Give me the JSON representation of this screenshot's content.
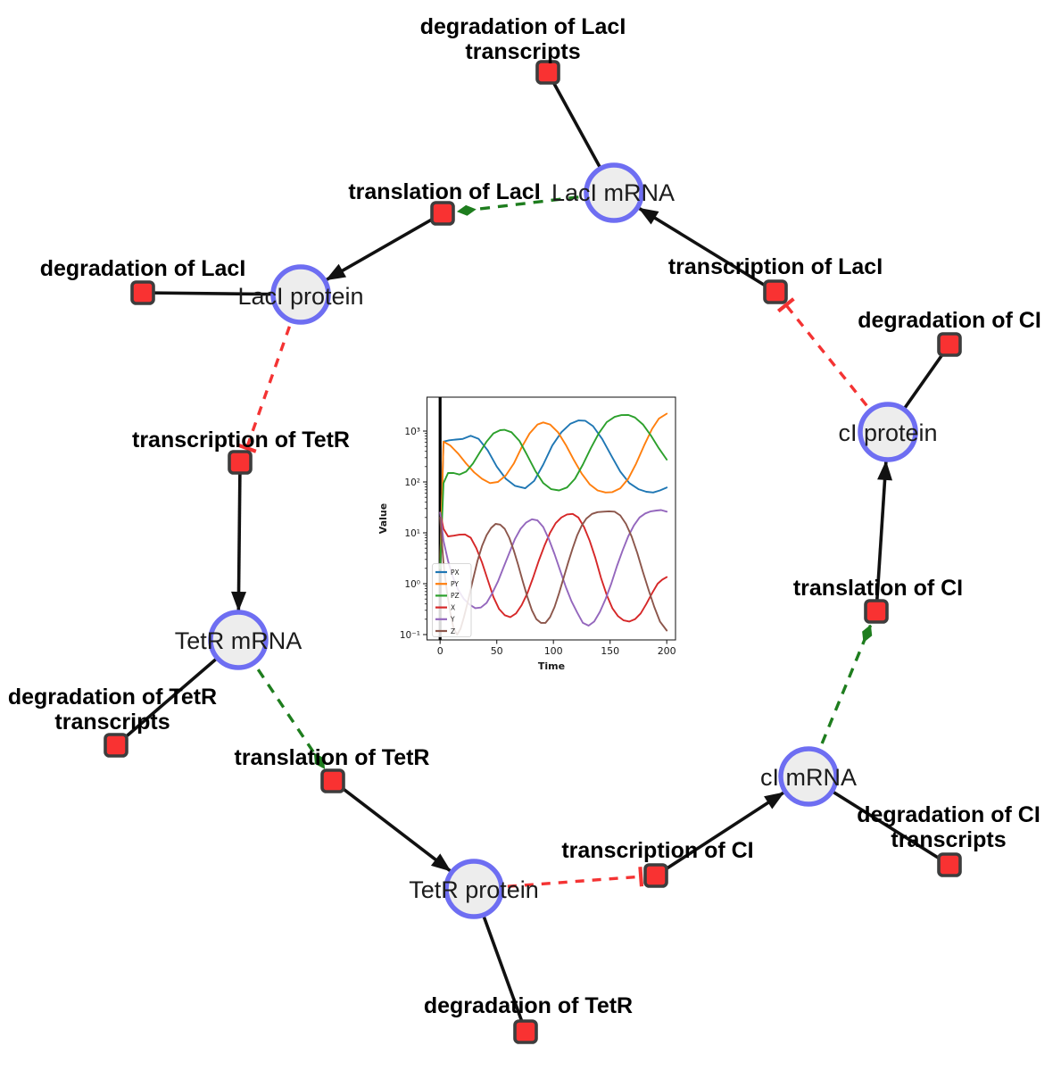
{
  "network": {
    "species_nodes": {
      "laci_mrna": {
        "label": "LacI mRNA"
      },
      "laci_protein": {
        "label": "LacI protein"
      },
      "tetr_mrna": {
        "label": "TetR mRNA"
      },
      "tetr_protein": {
        "label": "TetR protein"
      },
      "ci_mrna": {
        "label": "cI mRNA"
      },
      "ci_protein": {
        "label": "cI protein"
      }
    },
    "reaction_nodes": {
      "deg_laci_tx": {
        "line1": "degradation of LacI",
        "line2": "transcripts"
      },
      "trl_laci": {
        "line1": "translation of LacI"
      },
      "txn_laci": {
        "line1": "transcription of LacI"
      },
      "deg_ci": {
        "line1": "degradation of CI"
      },
      "deg_laci": {
        "line1": "degradation of LacI"
      },
      "txn_tetr": {
        "line1": "transcription of TetR"
      },
      "deg_tetr_tx": {
        "line1": "degradation of TetR",
        "line2": "transcripts"
      },
      "trl_tetr": {
        "line1": "translation of TetR"
      },
      "deg_tetr": {
        "line1": "degradation of TetR"
      },
      "txn_ci": {
        "line1": "transcription of CI"
      },
      "trl_ci": {
        "line1": "translation of CI"
      },
      "deg_ci_tx": {
        "line1": "degradation of CI",
        "line2": "transcripts"
      }
    },
    "colors": {
      "species_fill": "#ededed",
      "species_stroke": "#6e6ef2",
      "reaction_fill": "#f93232",
      "reaction_stroke": "#3d3d3d",
      "production_edge": "#111111",
      "consumption_edge": "#111111",
      "modifier_edge": "#1e7d1e",
      "inhibition_edge": "#f43333"
    }
  },
  "chart_data": {
    "type": "line",
    "title": "",
    "xlabel": "Time",
    "ylabel": "Value",
    "yscale": "log",
    "xlim": [
      -12,
      208
    ],
    "ylim": [
      0.08,
      4600
    ],
    "grid": false,
    "legend_position": "lower left",
    "annotation_vline_x": 0,
    "xticks": [
      0,
      50,
      100,
      150,
      200
    ],
    "xticklabels": [
      "0",
      "50",
      "100",
      "150",
      "200"
    ],
    "yticklabels": [
      "10⁻¹",
      "10⁰",
      "10¹",
      "10²",
      "10³"
    ],
    "series": [
      {
        "name": "PX",
        "color": "#1f77b4",
        "points": [
          [
            0,
            2
          ],
          [
            3,
            620
          ],
          [
            8,
            660
          ],
          [
            14,
            680
          ],
          [
            20,
            700
          ],
          [
            27,
            810
          ],
          [
            34,
            700
          ],
          [
            42,
            420
          ],
          [
            50,
            200
          ],
          [
            58,
            115
          ],
          [
            66,
            84
          ],
          [
            75,
            75
          ],
          [
            83,
            105
          ],
          [
            91,
            220
          ],
          [
            99,
            520
          ],
          [
            107,
            950
          ],
          [
            115,
            1400
          ],
          [
            122,
            1620
          ],
          [
            128,
            1600
          ],
          [
            135,
            1250
          ],
          [
            143,
            700
          ],
          [
            151,
            330
          ],
          [
            159,
            160
          ],
          [
            167,
            95
          ],
          [
            175,
            72
          ],
          [
            182,
            64
          ],
          [
            188,
            62
          ],
          [
            194,
            68
          ],
          [
            200,
            78
          ]
        ]
      },
      {
        "name": "PY",
        "color": "#ff7f0e",
        "points": [
          [
            0,
            2
          ],
          [
            3,
            620
          ],
          [
            9,
            520
          ],
          [
            16,
            360
          ],
          [
            23,
            230
          ],
          [
            30,
            155
          ],
          [
            37,
            115
          ],
          [
            44,
            95
          ],
          [
            51,
            100
          ],
          [
            58,
            135
          ],
          [
            65,
            230
          ],
          [
            72,
            480
          ],
          [
            79,
            900
          ],
          [
            86,
            1350
          ],
          [
            91,
            1480
          ],
          [
            97,
            1350
          ],
          [
            104,
            950
          ],
          [
            111,
            530
          ],
          [
            118,
            270
          ],
          [
            125,
            145
          ],
          [
            132,
            90
          ],
          [
            139,
            68
          ],
          [
            146,
            62
          ],
          [
            152,
            63
          ],
          [
            159,
            75
          ],
          [
            166,
            115
          ],
          [
            173,
            230
          ],
          [
            180,
            520
          ],
          [
            187,
            1100
          ],
          [
            193,
            1750
          ],
          [
            200,
            2200
          ]
        ]
      },
      {
        "name": "PZ",
        "color": "#2ca02c",
        "points": [
          [
            0,
            2
          ],
          [
            3,
            95
          ],
          [
            7,
            150
          ],
          [
            12,
            150
          ],
          [
            17,
            140
          ],
          [
            23,
            160
          ],
          [
            29,
            230
          ],
          [
            35,
            380
          ],
          [
            41,
            620
          ],
          [
            47,
            900
          ],
          [
            53,
            1040
          ],
          [
            57,
            1060
          ],
          [
            63,
            950
          ],
          [
            70,
            640
          ],
          [
            77,
            330
          ],
          [
            84,
            165
          ],
          [
            91,
            95
          ],
          [
            98,
            72
          ],
          [
            105,
            68
          ],
          [
            112,
            78
          ],
          [
            119,
            115
          ],
          [
            126,
            220
          ],
          [
            133,
            460
          ],
          [
            140,
            900
          ],
          [
            147,
            1500
          ],
          [
            154,
            1900
          ],
          [
            160,
            2060
          ],
          [
            166,
            2080
          ],
          [
            172,
            1850
          ],
          [
            179,
            1350
          ],
          [
            186,
            820
          ],
          [
            193,
            460
          ],
          [
            200,
            275
          ]
        ]
      },
      {
        "name": "X",
        "color": "#d62728",
        "points": [
          [
            0,
            25
          ],
          [
            3,
            12
          ],
          [
            7,
            8.5
          ],
          [
            12,
            8.8
          ],
          [
            17,
            9.2
          ],
          [
            22,
            9.3
          ],
          [
            27,
            8
          ],
          [
            32,
            5
          ],
          [
            37,
            2.6
          ],
          [
            42,
            1.2
          ],
          [
            47,
            0.55
          ],
          [
            52,
            0.32
          ],
          [
            57,
            0.24
          ],
          [
            62,
            0.22
          ],
          [
            67,
            0.26
          ],
          [
            72,
            0.38
          ],
          [
            77,
            0.65
          ],
          [
            82,
            1.3
          ],
          [
            87,
            2.8
          ],
          [
            92,
            5.5
          ],
          [
            97,
            10
          ],
          [
            102,
            15.5
          ],
          [
            107,
            20
          ],
          [
            112,
            23
          ],
          [
            117,
            23.5
          ],
          [
            122,
            20
          ],
          [
            127,
            13
          ],
          [
            132,
            7
          ],
          [
            137,
            3.2
          ],
          [
            142,
            1.3
          ],
          [
            147,
            0.6
          ],
          [
            152,
            0.33
          ],
          [
            157,
            0.23
          ],
          [
            162,
            0.19
          ],
          [
            167,
            0.18
          ],
          [
            172,
            0.2
          ],
          [
            177,
            0.26
          ],
          [
            182,
            0.4
          ],
          [
            187,
            0.65
          ],
          [
            192,
            1
          ],
          [
            196,
            1.2
          ],
          [
            200,
            1.35
          ]
        ]
      },
      {
        "name": "Y",
        "color": "#9467bd",
        "points": [
          [
            0,
            25
          ],
          [
            3,
            7
          ],
          [
            7,
            2.8
          ],
          [
            11,
            1.4
          ],
          [
            16,
            0.75
          ],
          [
            21,
            0.5
          ],
          [
            26,
            0.39
          ],
          [
            31,
            0.33
          ],
          [
            36,
            0.34
          ],
          [
            41,
            0.42
          ],
          [
            46,
            0.65
          ],
          [
            51,
            1.1
          ],
          [
            56,
            2.1
          ],
          [
            61,
            4
          ],
          [
            66,
            7.5
          ],
          [
            71,
            12
          ],
          [
            76,
            16
          ],
          [
            81,
            18.5
          ],
          [
            86,
            17.5
          ],
          [
            91,
            13
          ],
          [
            96,
            7.5
          ],
          [
            101,
            3.8
          ],
          [
            106,
            1.8
          ],
          [
            111,
            0.85
          ],
          [
            116,
            0.45
          ],
          [
            121,
            0.27
          ],
          [
            126,
            0.17
          ],
          [
            131,
            0.15
          ],
          [
            136,
            0.18
          ],
          [
            141,
            0.28
          ],
          [
            146,
            0.5
          ],
          [
            151,
            1
          ],
          [
            156,
            2.2
          ],
          [
            161,
            4.5
          ],
          [
            166,
            8.5
          ],
          [
            171,
            14
          ],
          [
            176,
            20
          ],
          [
            181,
            24
          ],
          [
            186,
            26.5
          ],
          [
            191,
            27.5
          ],
          [
            195,
            28
          ],
          [
            200,
            26
          ]
        ]
      },
      {
        "name": "Z",
        "color": "#8c564b",
        "points": [
          [
            0,
            20
          ],
          [
            3,
            2.5
          ],
          [
            6,
            0.7
          ],
          [
            9,
            0.27
          ],
          [
            12,
            0.13
          ],
          [
            15,
            0.1
          ],
          [
            18,
            0.13
          ],
          [
            21,
            0.22
          ],
          [
            25,
            0.5
          ],
          [
            29,
            1.2
          ],
          [
            33,
            2.8
          ],
          [
            37,
            5.5
          ],
          [
            41,
            9
          ],
          [
            45,
            12.5
          ],
          [
            49,
            15
          ],
          [
            53,
            14.5
          ],
          [
            57,
            12
          ],
          [
            61,
            8
          ],
          [
            65,
            4.5
          ],
          [
            69,
            2.3
          ],
          [
            73,
            1.1
          ],
          [
            77,
            0.55
          ],
          [
            81,
            0.3
          ],
          [
            85,
            0.2
          ],
          [
            89,
            0.17
          ],
          [
            93,
            0.17
          ],
          [
            97,
            0.22
          ],
          [
            101,
            0.35
          ],
          [
            105,
            0.65
          ],
          [
            109,
            1.3
          ],
          [
            113,
            2.6
          ],
          [
            117,
            5
          ],
          [
            121,
            9
          ],
          [
            125,
            14
          ],
          [
            129,
            19
          ],
          [
            134,
            23.5
          ],
          [
            139,
            25.5
          ],
          [
            144,
            26
          ],
          [
            149,
            26.5
          ],
          [
            154,
            26
          ],
          [
            159,
            22
          ],
          [
            164,
            15
          ],
          [
            169,
            8.5
          ],
          [
            174,
            4
          ],
          [
            179,
            1.7
          ],
          [
            184,
            0.75
          ],
          [
            189,
            0.35
          ],
          [
            194,
            0.18
          ],
          [
            200,
            0.12
          ]
        ]
      }
    ]
  }
}
